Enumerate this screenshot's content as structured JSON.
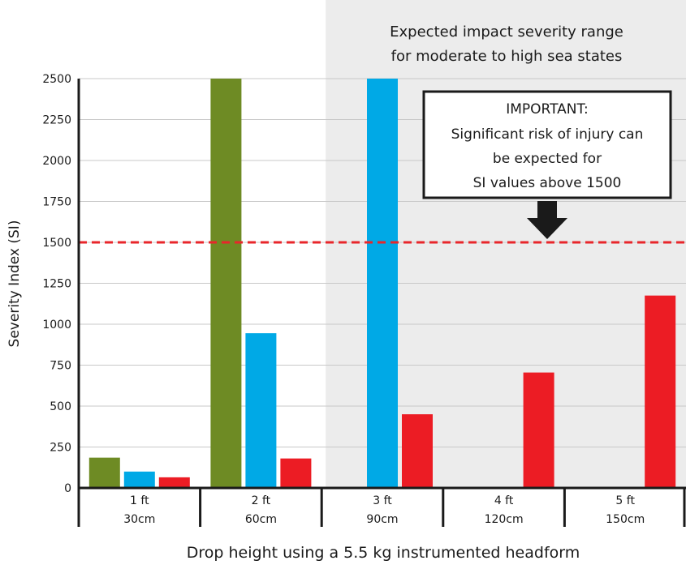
{
  "chart_data": {
    "type": "bar",
    "title": "",
    "xlabel": "Drop height using a 5.5 kg instrumented headform",
    "ylabel": "Severity Index (SI)",
    "ylim": [
      0,
      2500
    ],
    "yticks": [
      0,
      250,
      500,
      750,
      1000,
      1250,
      1500,
      1750,
      2000,
      2250,
      2500
    ],
    "grid": true,
    "categories": [
      {
        "line1": "1 ft",
        "line2": "30cm"
      },
      {
        "line1": "2 ft",
        "line2": "60cm"
      },
      {
        "line1": "3 ft",
        "line2": "90cm"
      },
      {
        "line1": "4 ft",
        "line2": "120cm"
      },
      {
        "line1": "5 ft",
        "line2": "150cm"
      }
    ],
    "series": [
      {
        "color": "#6e8b24",
        "values": [
          185,
          2500,
          null,
          null,
          null
        ]
      },
      {
        "color": "#00a9e6",
        "values": [
          100,
          945,
          2500,
          null,
          null
        ]
      },
      {
        "color": "#ec1c24",
        "values": [
          65,
          180,
          450,
          705,
          1175
        ]
      }
    ],
    "threshold": {
      "value": 1500,
      "color": "#e8262b"
    },
    "shaded_region": {
      "from_category": 2,
      "color": "#ececec",
      "label_line1": "Expected impact severity range",
      "label_line2": "for moderate to high sea states"
    },
    "callout": {
      "line1": "IMPORTANT:",
      "line2": "Significant risk of injury can",
      "line3": "be expected for",
      "line4": "SI values above 1500",
      "arrow_color": "#1a1a1a"
    }
  }
}
